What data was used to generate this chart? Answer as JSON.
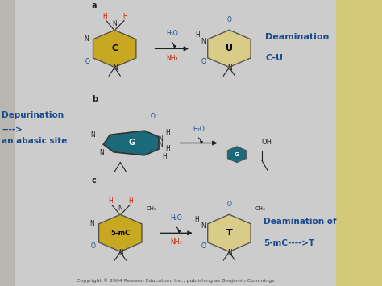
{
  "bg_color": "#cccccc",
  "bg_main": "#d0d0d0",
  "red_color": "#cc2200",
  "blue_color": "#1a4a8a",
  "gold_color": "#c8a820",
  "teal_color": "#1a6a7a",
  "tan_color": "#d8cc88",
  "dark_color": "#222222",
  "copyright": "Copyright © 2004 Pearson Education, Inc., publishing as Benjamin Cummings",
  "label_a": "a",
  "label_b": "b",
  "label_c": "c",
  "deamination_cu_1": "Deamination",
  "deamination_cu_2": "C-U",
  "depurination_1": "Depurination",
  "depurination_2": "---->",
  "depurination_3": "an abasic site",
  "deamination_5mc_1": "Deamination of",
  "deamination_5mc_2": "5-mC---->T",
  "h2o": "H₂O",
  "nh3": "NH₃",
  "oh": "OH",
  "figw": 4.74,
  "figh": 3.55,
  "dpi": 100
}
